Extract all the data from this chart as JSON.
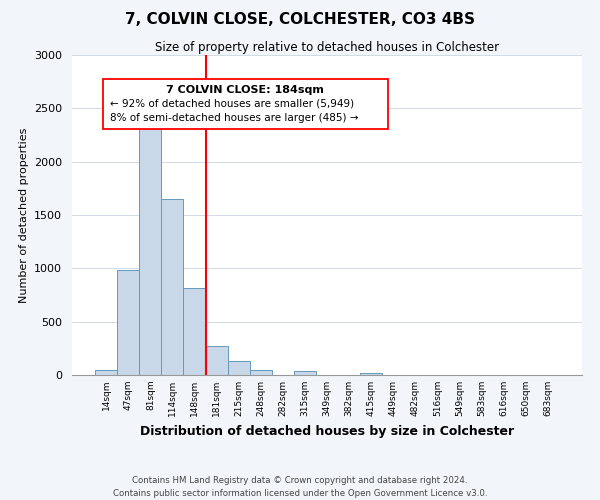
{
  "title": "7, COLVIN CLOSE, COLCHESTER, CO3 4BS",
  "subtitle": "Size of property relative to detached houses in Colchester",
  "xlabel": "Distribution of detached houses by size in Colchester",
  "ylabel": "Number of detached properties",
  "bin_labels": [
    "14sqm",
    "47sqm",
    "81sqm",
    "114sqm",
    "148sqm",
    "181sqm",
    "215sqm",
    "248sqm",
    "282sqm",
    "315sqm",
    "349sqm",
    "382sqm",
    "415sqm",
    "449sqm",
    "482sqm",
    "516sqm",
    "549sqm",
    "583sqm",
    "616sqm",
    "650sqm",
    "683sqm"
  ],
  "bar_values": [
    50,
    980,
    2460,
    1650,
    820,
    270,
    130,
    50,
    0,
    40,
    0,
    0,
    15,
    0,
    0,
    0,
    0,
    0,
    0,
    0,
    0
  ],
  "bar_color": "#c8d8e8",
  "bar_edge_color": "#6699bb",
  "ylim": [
    0,
    3000
  ],
  "yticks": [
    0,
    500,
    1000,
    1500,
    2000,
    2500,
    3000
  ],
  "property_line_bin": 5,
  "property_line_color": "red",
  "annotation_title": "7 COLVIN CLOSE: 184sqm",
  "annotation_line1": "← 92% of detached houses are smaller (5,949)",
  "annotation_line2": "8% of semi-detached houses are larger (485) →",
  "footer1": "Contains HM Land Registry data © Crown copyright and database right 2024.",
  "footer2": "Contains public sector information licensed under the Open Government Licence v3.0.",
  "bg_color": "#f2f6fa",
  "plot_bg_color": "#ffffff"
}
